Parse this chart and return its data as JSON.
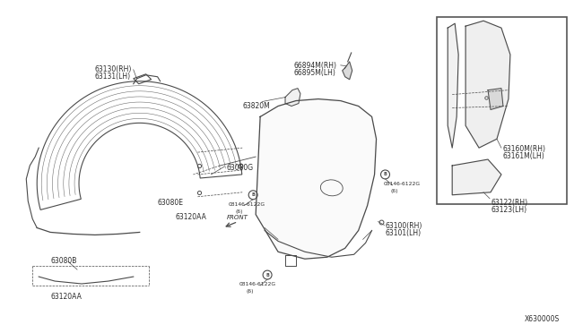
{
  "bg_color": "#ffffff",
  "line_color": "#4a4a4a",
  "text_color": "#2a2a2a",
  "diagram_number": "X630000S",
  "fig_width": 6.4,
  "fig_height": 3.72,
  "dpi": 100,
  "parts_labels": {
    "63130RH_LH": [
      "63130(RH)",
      "63131(LH)"
    ],
    "63080G": "63080G",
    "63080E": "63080E",
    "63080B": "63080B",
    "63120AA": "63120AA",
    "66894M": [
      "66894M(RH)",
      "66895M(LH)"
    ],
    "63820M": "63820M",
    "bolt1": [
      "08146-6122G",
      "(6)"
    ],
    "bolt2": [
      "08146-6122G",
      "(6)"
    ],
    "bolt3": [
      "08146-6122G",
      "(6)"
    ],
    "63100": [
      "63100(RH)",
      "63101(LH)"
    ],
    "63160M": [
      "63160M(RH)",
      "63161M(LH)"
    ],
    "63122": [
      "63122(RH)",
      "63123(LH)"
    ]
  }
}
